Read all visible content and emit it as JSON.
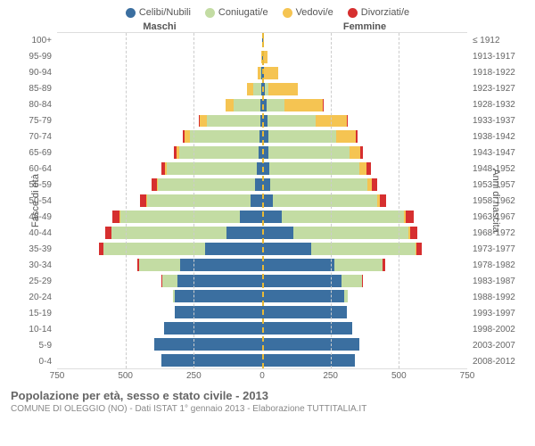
{
  "legend": [
    {
      "label": "Celibi/Nubili",
      "color": "#3b6fa0"
    },
    {
      "label": "Coniugati/e",
      "color": "#c3dca3"
    },
    {
      "label": "Vedovi/e",
      "color": "#f5c452"
    },
    {
      "label": "Divorziati/e",
      "color": "#d62f2f"
    }
  ],
  "headers": {
    "male": "Maschi",
    "female": "Femmine"
  },
  "axis_titles": {
    "left": "Fasce di età",
    "right": "Anni di nascita"
  },
  "x_axis": {
    "max": 750,
    "ticks": [
      750,
      500,
      250,
      0,
      250,
      500,
      750
    ]
  },
  "footer": {
    "title": "Popolazione per età, sesso e stato civile - 2013",
    "sub": "COMUNE DI OLEGGIO (NO) - Dati ISTAT 1° gennaio 2013 - Elaborazione TUTTITALIA.IT"
  },
  "age_labels": [
    "100+",
    "95-99",
    "90-94",
    "85-89",
    "80-84",
    "75-79",
    "70-74",
    "65-69",
    "60-64",
    "55-59",
    "50-54",
    "45-49",
    "40-44",
    "35-39",
    "30-34",
    "25-29",
    "20-24",
    "15-19",
    "10-14",
    "5-9",
    "0-4"
  ],
  "birth_labels": [
    "≤ 1912",
    "1913-1917",
    "1918-1922",
    "1923-1927",
    "1928-1932",
    "1933-1937",
    "1938-1942",
    "1943-1947",
    "1948-1952",
    "1953-1957",
    "1958-1962",
    "1963-1967",
    "1968-1972",
    "1973-1977",
    "1978-1982",
    "1983-1987",
    "1988-1992",
    "1993-1997",
    "1998-2002",
    "2003-2007",
    "2008-2012"
  ],
  "data": [
    {
      "m": [
        0,
        0,
        1,
        0
      ],
      "f": [
        2,
        0,
        3,
        0
      ]
    },
    {
      "m": [
        1,
        0,
        3,
        0
      ],
      "f": [
        2,
        0,
        18,
        0
      ]
    },
    {
      "m": [
        2,
        5,
        10,
        0
      ],
      "f": [
        6,
        2,
        50,
        0
      ]
    },
    {
      "m": [
        4,
        30,
        22,
        0
      ],
      "f": [
        10,
        12,
        110,
        0
      ]
    },
    {
      "m": [
        6,
        100,
        28,
        0
      ],
      "f": [
        16,
        65,
        140,
        2
      ]
    },
    {
      "m": [
        8,
        195,
        25,
        2
      ],
      "f": [
        20,
        175,
        115,
        3
      ]
    },
    {
      "m": [
        10,
        255,
        20,
        5
      ],
      "f": [
        22,
        250,
        70,
        6
      ]
    },
    {
      "m": [
        14,
        290,
        10,
        8
      ],
      "f": [
        24,
        295,
        40,
        10
      ]
    },
    {
      "m": [
        18,
        330,
        6,
        14
      ],
      "f": [
        26,
        330,
        25,
        16
      ]
    },
    {
      "m": [
        26,
        355,
        4,
        18
      ],
      "f": [
        30,
        355,
        15,
        20
      ]
    },
    {
      "m": [
        42,
        380,
        3,
        22
      ],
      "f": [
        40,
        380,
        10,
        24
      ]
    },
    {
      "m": [
        80,
        440,
        2,
        26
      ],
      "f": [
        72,
        445,
        8,
        28
      ]
    },
    {
      "m": [
        130,
        420,
        1,
        24
      ],
      "f": [
        115,
        420,
        6,
        26
      ]
    },
    {
      "m": [
        210,
        370,
        0,
        18
      ],
      "f": [
        180,
        380,
        3,
        20
      ]
    },
    {
      "m": [
        300,
        150,
        0,
        6
      ],
      "f": [
        265,
        175,
        1,
        8
      ]
    },
    {
      "m": [
        310,
        55,
        0,
        2
      ],
      "f": [
        290,
        75,
        0,
        3
      ]
    },
    {
      "m": [
        320,
        6,
        0,
        0
      ],
      "f": [
        300,
        14,
        0,
        0
      ]
    },
    {
      "m": [
        320,
        0,
        0,
        0
      ],
      "f": [
        310,
        0,
        0,
        0
      ]
    },
    {
      "m": [
        360,
        0,
        0,
        0
      ],
      "f": [
        330,
        0,
        0,
        0
      ]
    },
    {
      "m": [
        395,
        0,
        0,
        0
      ],
      "f": [
        355,
        0,
        0,
        0
      ]
    },
    {
      "m": [
        370,
        0,
        0,
        0
      ],
      "f": [
        340,
        0,
        0,
        0
      ]
    }
  ],
  "styling": {
    "background": "#ffffff",
    "grid_color": "#cccccc",
    "center_line_color": "#e8b937",
    "text_color": "#666666",
    "label_fontsize": 10,
    "header_fontsize": 11,
    "legend_fontsize": 11,
    "footer_title_fontsize": 13,
    "footer_sub_fontsize": 10
  }
}
